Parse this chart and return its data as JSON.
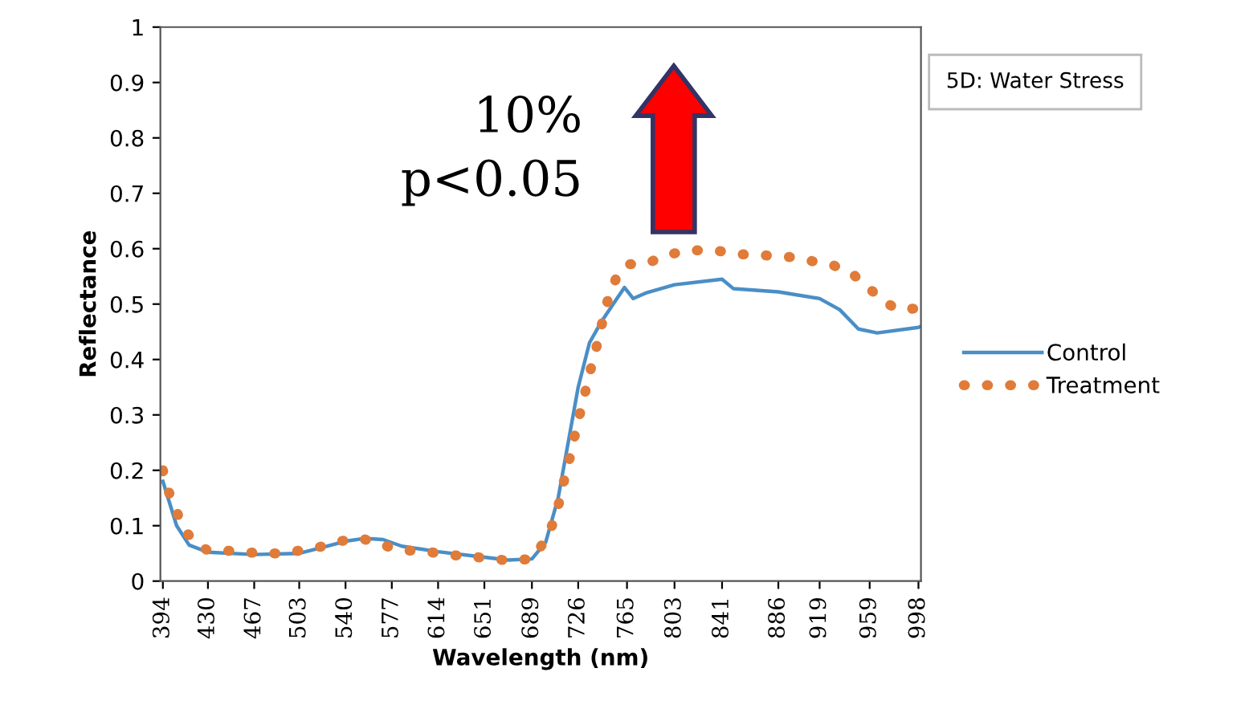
{
  "chart_data": {
    "type": "line",
    "title": "5D: Water Stress",
    "xlabel": "Wavelength (nm)",
    "ylabel": "Reflectance",
    "xlim": [
      392,
      1000
    ],
    "xticks": [
      394,
      430,
      467,
      503,
      540,
      577,
      614,
      651,
      689,
      726,
      765,
      803,
      841,
      886,
      919,
      959,
      998
    ],
    "ylim": [
      0,
      1
    ],
    "yticks": [
      0,
      0.1,
      0.2,
      0.3,
      0.4,
      0.5,
      0.6,
      0.7,
      0.8,
      0.9,
      1
    ],
    "legend": "right",
    "grid": false,
    "annotations": [
      "10%",
      "p<0.05"
    ],
    "series": [
      {
        "name": "Control",
        "color": "#4a8ec6",
        "line_style": "solid",
        "x": [
          394,
          405,
          415,
          430,
          467,
          503,
          520,
          540,
          555,
          570,
          585,
          600,
          614,
          651,
          670,
          689,
          700,
          710,
          718,
          726,
          735,
          745,
          757,
          763,
          770,
          780,
          803,
          841,
          850,
          886,
          919,
          935,
          950,
          965,
          998,
          1000
        ],
        "values": [
          0.18,
          0.1,
          0.065,
          0.052,
          0.048,
          0.05,
          0.06,
          0.072,
          0.077,
          0.075,
          0.063,
          0.058,
          0.053,
          0.043,
          0.038,
          0.04,
          0.07,
          0.15,
          0.25,
          0.35,
          0.43,
          0.47,
          0.51,
          0.53,
          0.51,
          0.52,
          0.535,
          0.545,
          0.528,
          0.522,
          0.51,
          0.49,
          0.455,
          0.448,
          0.458,
          0.46
        ]
      },
      {
        "name": "Treatment",
        "color": "#e07b39",
        "line_style": "dotted",
        "x": [
          394,
          398,
          405,
          412,
          420,
          430,
          445,
          460,
          475,
          490,
          503,
          520,
          535,
          553,
          570,
          585,
          600,
          620,
          635,
          651,
          670,
          689,
          697,
          705,
          710,
          714,
          718,
          722,
          726,
          730,
          734,
          738,
          742,
          746,
          750,
          756,
          765,
          780,
          795,
          815,
          835,
          855,
          875,
          895,
          912,
          930,
          945,
          958,
          970,
          982,
          995
        ],
        "values": [
          0.2,
          0.165,
          0.125,
          0.09,
          0.07,
          0.055,
          0.055,
          0.052,
          0.05,
          0.05,
          0.055,
          0.062,
          0.072,
          0.077,
          0.065,
          0.055,
          0.055,
          0.048,
          0.045,
          0.042,
          0.037,
          0.04,
          0.065,
          0.1,
          0.135,
          0.175,
          0.21,
          0.25,
          0.29,
          0.325,
          0.365,
          0.4,
          0.435,
          0.475,
          0.51,
          0.545,
          0.572,
          0.572,
          0.588,
          0.597,
          0.597,
          0.59,
          0.588,
          0.585,
          0.578,
          0.57,
          0.555,
          0.53,
          0.505,
          0.49,
          0.492
        ]
      }
    ]
  }
}
